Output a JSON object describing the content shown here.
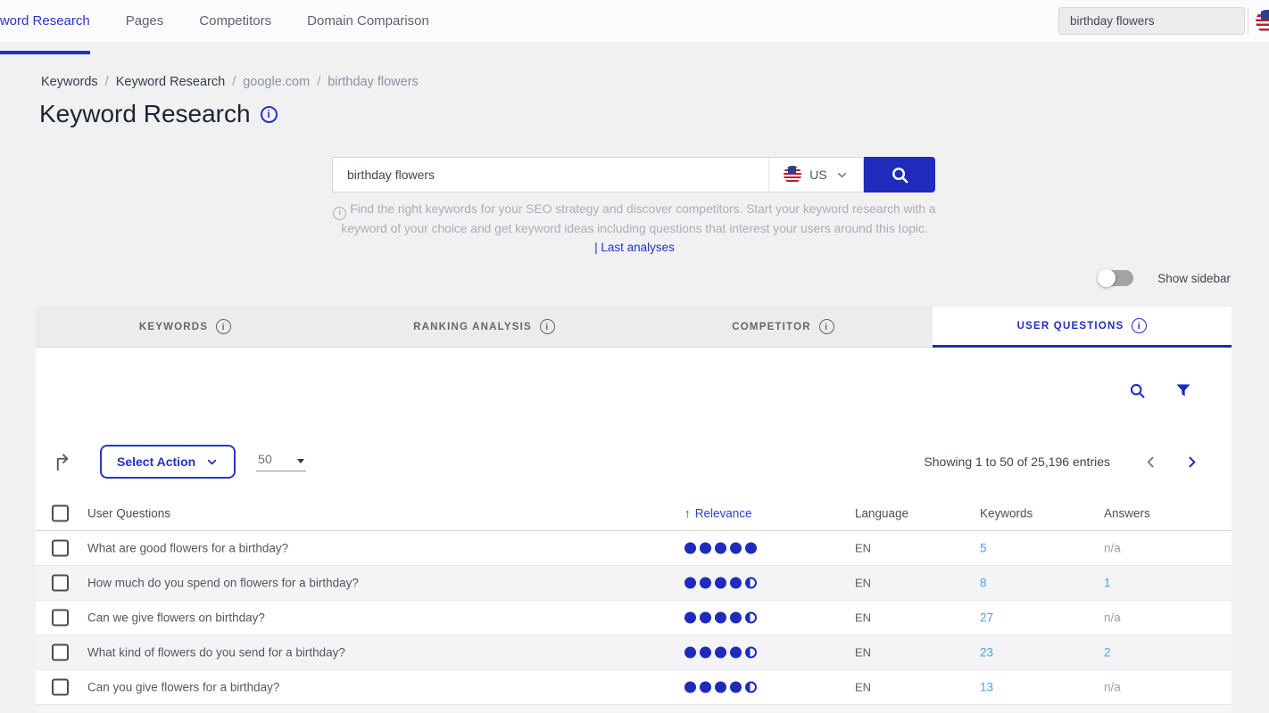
{
  "colors": {
    "primary": "#1f2bbd",
    "link": "#4f9fe8",
    "active-tab-text": "#212cc0",
    "inactive-tab-bg": "#ececed",
    "page-bg": "#f1f1f2"
  },
  "topnav": {
    "items": [
      {
        "label": "Keyword Research",
        "active": true
      },
      {
        "label": "Pages",
        "active": false
      },
      {
        "label": "Competitors",
        "active": false
      },
      {
        "label": "Domain Comparison",
        "active": false
      }
    ],
    "search_value": "birthday flowers"
  },
  "breadcrumb": [
    "Keywords",
    "Keyword Research",
    "google.com",
    "birthday flowers"
  ],
  "page": {
    "title": "Keyword Research"
  },
  "search": {
    "value": "birthday flowers",
    "country": "US"
  },
  "intro": {
    "line1": "Find the right keywords for your SEO strategy and discover competitors. Start your keyword research with a",
    "line2": "keyword of your choice and get keyword ideas including questions that interest your users around this topic.",
    "link": "| Last analyses"
  },
  "sidebar_toggle": {
    "label": "Show sidebar",
    "state": "off"
  },
  "tabs": [
    {
      "label": "KEYWORDS",
      "active": false
    },
    {
      "label": "RANKING ANALYSIS",
      "active": false
    },
    {
      "label": "COMPETITOR",
      "active": false
    },
    {
      "label": "USER QUESTIONS",
      "active": true
    }
  ],
  "actions": {
    "select_action": "Select Action",
    "page_size": "50"
  },
  "pagination": {
    "summary": "Showing 1 to 50 of 25,196 entries"
  },
  "table": {
    "columns": {
      "questions": "User Questions",
      "relevance": "Relevance",
      "language": "Language",
      "keywords": "Keywords",
      "answers": "Answers"
    },
    "sort": {
      "column": "Relevance",
      "direction": "asc",
      "arrow": "↑"
    },
    "rows": [
      {
        "question": "What are good flowers for a birthday?",
        "relevance": 5,
        "language": "EN",
        "keywords": "5",
        "answers": "n/a"
      },
      {
        "question": "How much do you spend on flowers for a birthday?",
        "relevance": 4.5,
        "language": "EN",
        "keywords": "8",
        "answers": "1"
      },
      {
        "question": "Can we give flowers on birthday?",
        "relevance": 4.5,
        "language": "EN",
        "keywords": "27",
        "answers": "n/a"
      },
      {
        "question": "What kind of flowers do you send for a birthday?",
        "relevance": 4.5,
        "language": "EN",
        "keywords": "23",
        "answers": "2"
      },
      {
        "question": "Can you give flowers for a birthday?",
        "relevance": 4.5,
        "language": "EN",
        "keywords": "13",
        "answers": "n/a"
      }
    ]
  }
}
